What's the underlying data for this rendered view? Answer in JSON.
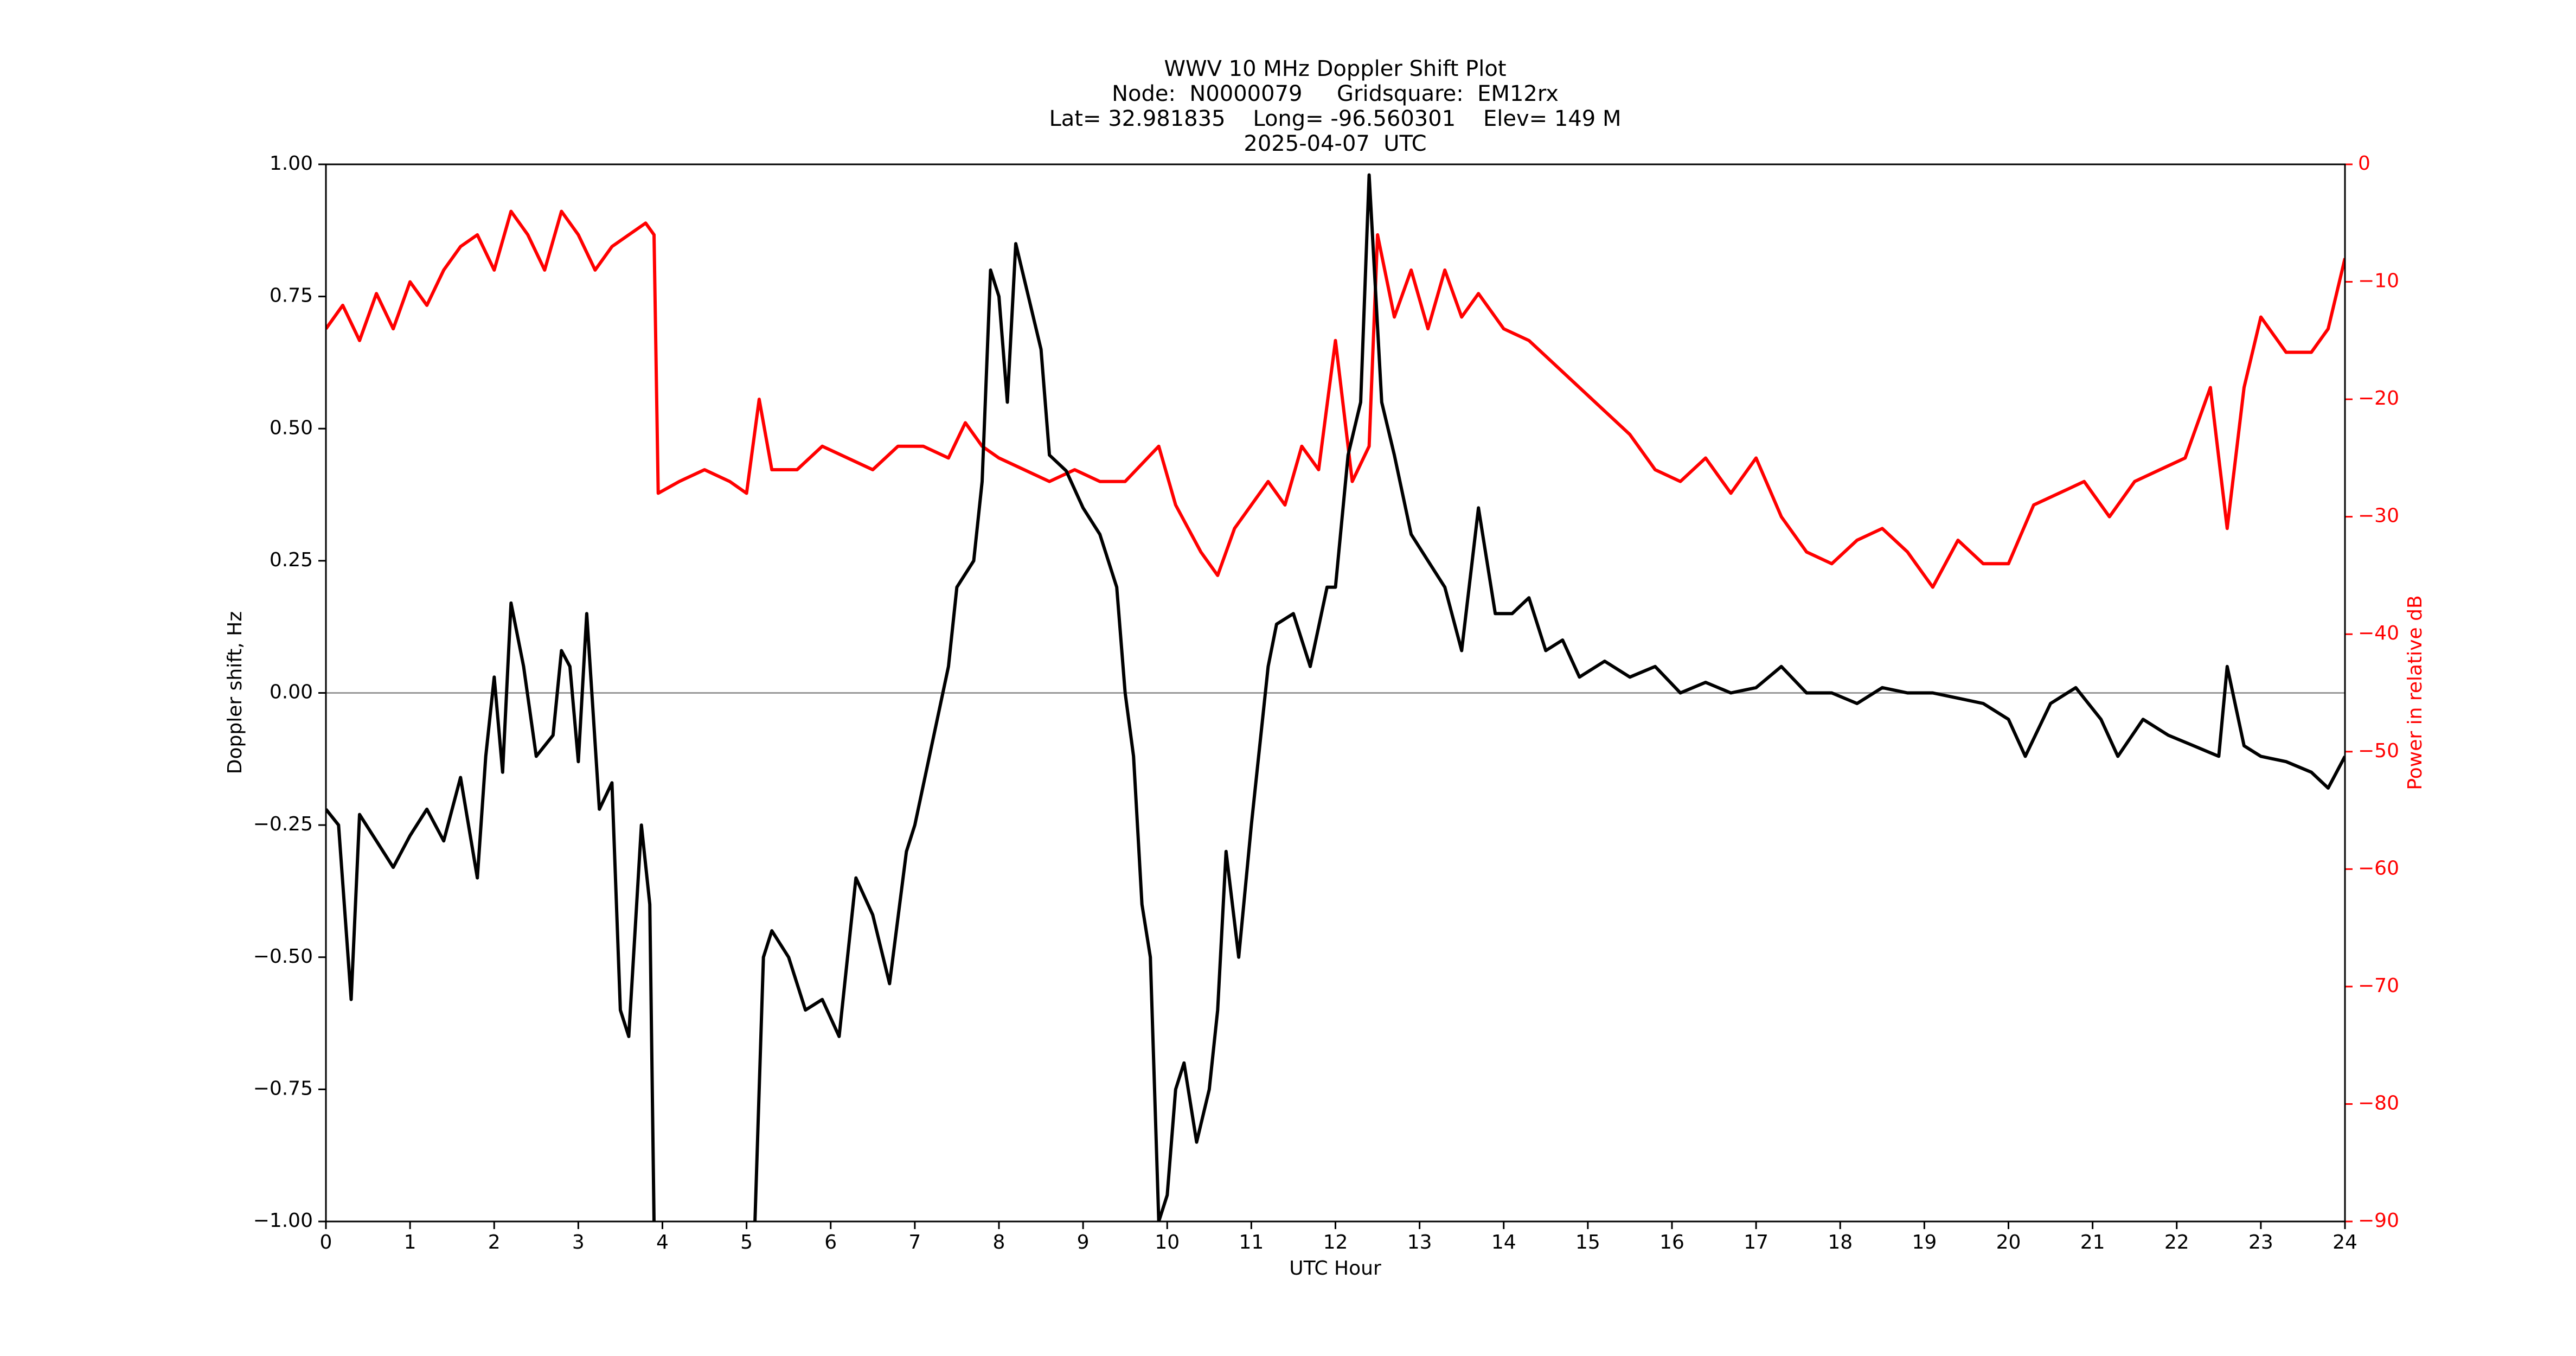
{
  "chart_data": {
    "type": "line",
    "title_lines": [
      "WWV 10 MHz Doppler Shift Plot",
      "Node:  N0000079     Gridsquare:  EM12rx",
      "Lat= 32.981835    Long= -96.560301    Elev= 149 M",
      "2025-04-07  UTC"
    ],
    "xlabel": "UTC Hour",
    "ylabel": "Doppler shift, Hz",
    "y2label": "Power in relative dB",
    "xlim": [
      0,
      24
    ],
    "xticks": [
      0,
      1,
      2,
      3,
      4,
      5,
      6,
      7,
      8,
      9,
      10,
      11,
      12,
      13,
      14,
      15,
      16,
      17,
      18,
      19,
      20,
      21,
      22,
      23,
      24
    ],
    "ylim": [
      -1,
      1
    ],
    "yticks": [
      {
        "value": -1,
        "label": "−1.00"
      },
      {
        "value": -0.75,
        "label": "−0.75"
      },
      {
        "value": -0.5,
        "label": "−0.50"
      },
      {
        "value": -0.25,
        "label": "−0.25"
      },
      {
        "value": 0,
        "label": "0.00"
      },
      {
        "value": 0.25,
        "label": "0.25"
      },
      {
        "value": 0.5,
        "label": "0.50"
      },
      {
        "value": 0.75,
        "label": "0.75"
      },
      {
        "value": 1,
        "label": "1.00"
      }
    ],
    "y2lim": [
      -90,
      0
    ],
    "y2ticks": [
      {
        "value": -90,
        "label": "−90"
      },
      {
        "value": -80,
        "label": "−80"
      },
      {
        "value": -70,
        "label": "−70"
      },
      {
        "value": -60,
        "label": "−60"
      },
      {
        "value": -50,
        "label": "−50"
      },
      {
        "value": -40,
        "label": "−40"
      },
      {
        "value": -30,
        "label": "−30"
      },
      {
        "value": -20,
        "label": "−20"
      },
      {
        "value": -10,
        "label": "−10"
      },
      0
    ],
    "y2color": "#ff0000",
    "hlines": [
      {
        "value": 0,
        "color": "#999999"
      }
    ],
    "series": [
      {
        "color": "#ff0000",
        "axis": "y2",
        "x": [
          0,
          0.2,
          0.4,
          0.6,
          0.8,
          1.0,
          1.2,
          1.4,
          1.6,
          1.8,
          2.0,
          2.2,
          2.4,
          2.6,
          2.8,
          3.0,
          3.2,
          3.4,
          3.6,
          3.8,
          3.9,
          3.95,
          4.2,
          4.5,
          4.8,
          5.0,
          5.15,
          5.3,
          5.6,
          5.9,
          6.2,
          6.5,
          6.8,
          7.1,
          7.4,
          7.6,
          7.8,
          8.0,
          8.3,
          8.6,
          8.9,
          9.2,
          9.5,
          9.9,
          10.1,
          10.4,
          10.6,
          10.8,
          11.0,
          11.2,
          11.4,
          11.6,
          11.8,
          12.0,
          12.2,
          12.4,
          12.5,
          12.7,
          12.9,
          13.1,
          13.3,
          13.5,
          13.7,
          14.0,
          14.3,
          14.6,
          14.9,
          15.2,
          15.5,
          15.8,
          16.1,
          16.4,
          16.7,
          17.0,
          17.3,
          17.6,
          17.9,
          18.2,
          18.5,
          18.8,
          19.1,
          19.4,
          19.7,
          20.0,
          20.3,
          20.6,
          20.9,
          21.2,
          21.5,
          21.8,
          22.1,
          22.4,
          22.6,
          22.8,
          23.0,
          23.3,
          23.6,
          23.8,
          24.0
        ],
        "values": [
          -14,
          -12,
          -15,
          -11,
          -14,
          -10,
          -12,
          -9,
          -7,
          -6,
          -9,
          -4,
          -6,
          -9,
          -4,
          -6,
          -9,
          -7,
          -6,
          -5,
          -6,
          -28,
          -27,
          -26,
          -27,
          -28,
          -20,
          -26,
          -26,
          -24,
          -25,
          -26,
          -24,
          -24,
          -25,
          -22,
          -24,
          -25,
          -26,
          -27,
          -26,
          -27,
          -27,
          -24,
          -29,
          -33,
          -35,
          -31,
          -29,
          -27,
          -29,
          -24,
          -26,
          -15,
          -27,
          -24,
          -6,
          -13,
          -9,
          -14,
          -9,
          -13,
          -11,
          -14,
          -15,
          -17,
          -19,
          -21,
          -23,
          -26,
          -27,
          -25,
          -28,
          -25,
          -30,
          -33,
          -34,
          -32,
          -31,
          -33,
          -36,
          -32,
          -34,
          -34,
          -29,
          -28,
          -27,
          -30,
          -27,
          -26,
          -25,
          -19,
          -31,
          -19,
          -13,
          -16,
          -16,
          -14,
          -8
        ]
      },
      {
        "color": "#000000",
        "x": [
          0,
          0.15,
          0.3,
          0.4,
          0.6,
          0.8,
          1.0,
          1.2,
          1.4,
          1.6,
          1.8,
          1.9,
          2.0,
          2.1,
          2.2,
          2.35,
          2.5,
          2.7,
          2.8,
          2.9,
          3.0,
          3.1,
          3.25,
          3.4,
          3.5,
          3.6,
          3.75,
          3.85,
          3.9,
          4.5,
          5.1,
          5.2,
          5.3,
          5.5,
          5.7,
          5.9,
          6.1,
          6.3,
          6.5,
          6.7,
          6.9,
          7.0,
          7.2,
          7.4,
          7.5,
          7.7,
          7.8,
          7.9,
          8.0,
          8.1,
          8.2,
          8.35,
          8.5,
          8.6,
          8.8,
          9.0,
          9.2,
          9.4,
          9.5,
          9.6,
          9.7,
          9.8,
          9.9,
          10.0,
          10.1,
          10.2,
          10.35,
          10.5,
          10.6,
          10.7,
          10.85,
          11.0,
          11.2,
          11.3,
          11.5,
          11.7,
          11.9,
          12.0,
          12.15,
          12.3,
          12.4,
          12.55,
          12.7,
          12.9,
          13.1,
          13.3,
          13.5,
          13.7,
          13.9,
          14.1,
          14.3,
          14.5,
          14.7,
          14.9,
          15.2,
          15.5,
          15.8,
          16.1,
          16.4,
          16.7,
          17.0,
          17.3,
          17.6,
          17.9,
          18.2,
          18.5,
          18.8,
          19.1,
          19.4,
          19.7,
          20.0,
          20.2,
          20.5,
          20.8,
          21.1,
          21.3,
          21.6,
          21.9,
          22.2,
          22.5,
          22.6,
          22.8,
          23.0,
          23.3,
          23.6,
          23.8,
          24.0
        ],
        "values": [
          -0.22,
          -0.25,
          -0.58,
          -0.23,
          -0.28,
          -0.33,
          -0.27,
          -0.22,
          -0.28,
          -0.16,
          -0.35,
          -0.12,
          0.03,
          -0.15,
          0.17,
          0.05,
          -0.12,
          -0.08,
          0.08,
          0.05,
          -0.13,
          0.15,
          -0.22,
          -0.17,
          -0.6,
          -0.65,
          -0.25,
          -0.4,
          -1.0,
          null,
          -1.0,
          -0.5,
          -0.45,
          -0.5,
          -0.6,
          -0.58,
          -0.65,
          -0.35,
          -0.42,
          -0.55,
          -0.3,
          -0.25,
          -0.1,
          0.05,
          0.2,
          0.25,
          0.4,
          0.8,
          0.75,
          0.55,
          0.85,
          0.75,
          0.65,
          0.45,
          0.42,
          0.35,
          0.3,
          0.2,
          0.0,
          -0.12,
          -0.4,
          -0.5,
          -1.0,
          -0.95,
          -0.75,
          -0.7,
          -0.85,
          -0.75,
          -0.6,
          -0.3,
          -0.5,
          -0.25,
          0.05,
          0.13,
          0.15,
          0.05,
          0.2,
          0.2,
          0.45,
          0.55,
          0.98,
          0.55,
          0.45,
          0.3,
          0.25,
          0.2,
          0.08,
          0.35,
          0.15,
          0.15,
          0.18,
          0.08,
          0.1,
          0.03,
          0.06,
          0.03,
          0.05,
          0.0,
          0.02,
          0.0,
          0.01,
          0.05,
          0.0,
          0.0,
          -0.02,
          0.01,
          0.0,
          0.0,
          -0.01,
          -0.02,
          -0.05,
          -0.12,
          -0.02,
          0.01,
          -0.05,
          -0.12,
          -0.05,
          -0.08,
          -0.1,
          -0.12,
          0.05,
          -0.1,
          -0.12,
          -0.13,
          -0.15,
          -0.18,
          -0.12
        ]
      }
    ]
  }
}
